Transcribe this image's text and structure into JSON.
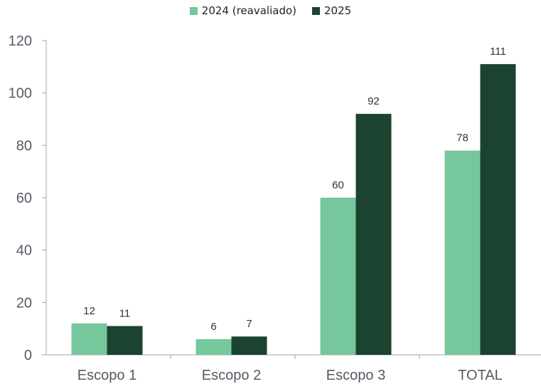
{
  "chart_data": {
    "type": "bar",
    "categories": [
      "Escopo 1",
      "Escopo 2",
      "Escopo 3",
      "TOTAL"
    ],
    "series": [
      {
        "name": "2024 (reavaliado)",
        "values": [
          12,
          6,
          60,
          78
        ],
        "color": "#76c79c"
      },
      {
        "name": "2025",
        "values": [
          11,
          7,
          92,
          111
        ],
        "color": "#1b4330"
      }
    ],
    "ylim": [
      0,
      120
    ],
    "yticks": [
      0,
      20,
      40,
      60,
      80,
      100,
      120
    ],
    "grid": false,
    "legend": "top-center",
    "data_labels": true
  }
}
